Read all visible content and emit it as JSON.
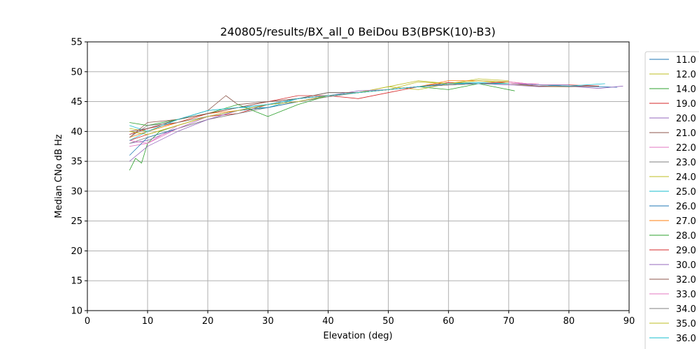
{
  "chart_data": {
    "type": "line",
    "title": "240805/results/BX_all_0 BeiDou B3(BPSK(10)-B3)",
    "xlabel": "Elevation (deg)",
    "ylabel": "Median CNo dB Hz",
    "xlim": [
      0,
      90
    ],
    "ylim": [
      10,
      55
    ],
    "xticks": [
      "0",
      "10",
      "20",
      "30",
      "40",
      "50",
      "60",
      "70",
      "80",
      "90"
    ],
    "yticks": [
      "10",
      "15",
      "20",
      "25",
      "30",
      "35",
      "40",
      "45",
      "50",
      "55"
    ],
    "grid": true,
    "legend_position": "right",
    "series": [
      {
        "name": "11.0",
        "color": "#1f77b4",
        "x": [
          7,
          10,
          15,
          20,
          25,
          30,
          35,
          40,
          45,
          50,
          55,
          60,
          65,
          70,
          75,
          80,
          85,
          88
        ],
        "y": [
          39.5,
          40.5,
          42.0,
          43.0,
          44.0,
          44.5,
          45.5,
          46.0,
          46.5,
          47.0,
          47.5,
          47.8,
          48.0,
          48.0,
          47.8,
          47.6,
          47.5,
          47.4
        ]
      },
      {
        "name": "12.0",
        "color": "#bcbd22",
        "x": [
          7,
          10,
          15,
          20,
          25,
          30,
          35,
          40,
          45,
          50,
          55,
          60,
          65,
          70,
          75,
          80
        ],
        "y": [
          40.5,
          40.0,
          41.5,
          42.5,
          43.5,
          44.5,
          45.0,
          46.0,
          46.5,
          47.5,
          47.0,
          48.0,
          48.5,
          48.0,
          47.5,
          47.5
        ]
      },
      {
        "name": "14.0",
        "color": "#2ca02c",
        "x": [
          7,
          8,
          9,
          10,
          12,
          15,
          20,
          25,
          30,
          35,
          40,
          45,
          50,
          55,
          60,
          65,
          71
        ],
        "y": [
          33.5,
          35.5,
          34.7,
          38.0,
          40.0,
          41.0,
          42.5,
          43.5,
          44.0,
          45.0,
          46.0,
          46.5,
          47.0,
          47.5,
          47.8,
          48.0,
          46.8
        ]
      },
      {
        "name": "19.0",
        "color": "#d62728",
        "x": [
          7,
          10,
          15,
          20,
          25,
          30,
          35,
          40,
          45,
          50,
          55,
          60,
          65,
          70,
          75,
          80,
          85
        ],
        "y": [
          38.5,
          39.5,
          41.0,
          42.5,
          43.0,
          44.5,
          45.5,
          46.0,
          45.5,
          46.5,
          47.5,
          48.2,
          48.0,
          48.3,
          47.8,
          47.8,
          47.6
        ]
      },
      {
        "name": "20.0",
        "color": "#9467bd",
        "x": [
          7,
          10,
          15,
          20,
          25,
          30,
          35,
          40,
          45,
          50,
          55,
          60,
          65,
          70,
          75,
          80,
          85,
          89
        ],
        "y": [
          38.0,
          38.5,
          40.5,
          42.0,
          43.5,
          44.5,
          45.5,
          46.0,
          46.5,
          47.0,
          47.5,
          47.8,
          48.0,
          47.8,
          47.5,
          47.6,
          47.2,
          47.6
        ]
      },
      {
        "name": "21.0",
        "color": "#8c564b",
        "x": [
          7,
          10,
          15,
          20,
          23,
          25,
          30,
          35,
          40,
          45,
          50,
          55,
          60,
          65,
          70,
          75,
          80,
          85
        ],
        "y": [
          39.0,
          41.5,
          42.0,
          43.5,
          46.0,
          44.5,
          45.0,
          45.5,
          46.0,
          46.5,
          47.0,
          47.5,
          47.8,
          48.0,
          48.0,
          47.6,
          47.5,
          47.6
        ]
      },
      {
        "name": "22.0",
        "color": "#e377c2",
        "x": [
          7,
          10,
          15,
          20,
          25,
          30,
          35,
          40,
          45,
          50,
          55,
          60,
          65,
          70,
          75,
          80
        ],
        "y": [
          37.5,
          38.0,
          41.0,
          42.5,
          43.5,
          44.5,
          45.0,
          46.0,
          46.5,
          47.0,
          47.5,
          48.0,
          48.0,
          48.3,
          47.8,
          47.6
        ]
      },
      {
        "name": "23.0",
        "color": "#7f7f7f",
        "x": [
          7,
          10,
          15,
          20,
          25,
          30,
          35,
          40,
          45,
          50,
          55,
          60,
          65,
          70,
          75,
          80
        ],
        "y": [
          38.0,
          39.0,
          40.5,
          42.0,
          43.0,
          44.0,
          45.0,
          45.8,
          46.5,
          47.0,
          47.5,
          47.8,
          48.0,
          48.0,
          47.8,
          47.6
        ]
      },
      {
        "name": "24.0",
        "color": "#bcbd22",
        "x": [
          7,
          10,
          15,
          20,
          25,
          30,
          35,
          40,
          45,
          50,
          55,
          60,
          65,
          70
        ],
        "y": [
          40.0,
          39.5,
          41.0,
          42.5,
          43.5,
          44.5,
          45.0,
          46.0,
          46.5,
          47.5,
          48.5,
          48.0,
          48.8,
          48.5
        ]
      },
      {
        "name": "25.0",
        "color": "#17becf",
        "x": [
          7,
          10,
          15,
          20,
          25,
          30,
          35,
          40,
          45,
          50,
          55,
          60,
          65,
          70,
          75,
          80,
          86
        ],
        "y": [
          41.0,
          40.0,
          42.0,
          43.5,
          44.0,
          44.0,
          45.5,
          46.5,
          46.5,
          47.0,
          47.5,
          48.0,
          48.2,
          48.0,
          47.8,
          47.6,
          48.0
        ]
      },
      {
        "name": "26.0",
        "color": "#1f77b4",
        "x": [
          7,
          10,
          15,
          20,
          25,
          30,
          35,
          40,
          45,
          50,
          55,
          60,
          65,
          70
        ],
        "y": [
          36.0,
          39.0,
          40.5,
          42.5,
          43.5,
          44.0,
          45.0,
          46.0,
          46.5,
          47.0,
          47.5,
          48.0,
          48.0,
          48.0
        ]
      },
      {
        "name": "27.0",
        "color": "#ff7f0e",
        "x": [
          7,
          10,
          15,
          20,
          25,
          30,
          35,
          40,
          45,
          50,
          55,
          60,
          65,
          70
        ],
        "y": [
          39.0,
          40.0,
          41.5,
          43.0,
          43.5,
          44.5,
          45.5,
          46.0,
          46.5,
          47.0,
          47.5,
          48.5,
          48.5,
          48.3
        ]
      },
      {
        "name": "28.0",
        "color": "#2ca02c",
        "x": [
          7,
          10,
          15,
          20,
          25,
          30,
          35,
          40,
          45,
          50,
          55,
          60,
          65,
          70
        ],
        "y": [
          41.5,
          41.0,
          42.0,
          43.0,
          44.5,
          42.5,
          44.5,
          46.0,
          46.5,
          47.0,
          47.5,
          47.0,
          48.0,
          48.0
        ]
      },
      {
        "name": "29.0",
        "color": "#d62728",
        "x": [
          7,
          10,
          15,
          20,
          25,
          30,
          35,
          40,
          45,
          50,
          55,
          60,
          65,
          70
        ],
        "y": [
          39.5,
          40.5,
          41.5,
          43.0,
          44.0,
          45.0,
          46.0,
          46.0,
          46.5,
          47.0,
          47.5,
          48.0,
          48.0,
          48.3
        ]
      },
      {
        "name": "30.0",
        "color": "#9467bd",
        "x": [
          7,
          10,
          15,
          20,
          25,
          30,
          35,
          40,
          45,
          50,
          55,
          60,
          65,
          70,
          75,
          80
        ],
        "y": [
          35.0,
          37.5,
          40.0,
          42.0,
          43.5,
          44.5,
          45.5,
          46.0,
          46.8,
          47.0,
          47.5,
          48.0,
          48.0,
          48.0,
          47.8,
          47.8
        ]
      },
      {
        "name": "32.0",
        "color": "#8c564b",
        "x": [
          7,
          10,
          15,
          20,
          25,
          30,
          35,
          40,
          45,
          50,
          55,
          60,
          65,
          70
        ],
        "y": [
          40.0,
          40.5,
          42.0,
          43.0,
          44.0,
          45.0,
          45.5,
          46.5,
          46.5,
          47.0,
          47.5,
          48.0,
          48.0,
          48.0
        ]
      },
      {
        "name": "33.0",
        "color": "#e377c2",
        "x": [
          7,
          10,
          15,
          20,
          25,
          30,
          35,
          40,
          45,
          50,
          55,
          60,
          65,
          70,
          75
        ],
        "y": [
          38.5,
          38.0,
          40.5,
          42.5,
          43.5,
          44.5,
          45.0,
          46.0,
          46.5,
          47.0,
          47.5,
          48.0,
          48.0,
          48.0,
          48.0
        ]
      },
      {
        "name": "34.0",
        "color": "#7f7f7f",
        "x": [
          7,
          10,
          15,
          20,
          25,
          30,
          35,
          40,
          45,
          50,
          55,
          60,
          65,
          70
        ],
        "y": [
          39.0,
          41.0,
          41.5,
          42.5,
          43.5,
          44.5,
          45.5,
          46.0,
          46.5,
          47.0,
          47.5,
          48.0,
          48.0,
          48.0
        ]
      },
      {
        "name": "35.0",
        "color": "#bcbd22",
        "x": [
          7,
          10,
          15,
          20,
          25,
          30,
          35,
          40,
          45,
          50,
          55,
          60,
          65,
          70
        ],
        "y": [
          40.0,
          39.5,
          41.0,
          42.5,
          43.5,
          44.5,
          45.0,
          46.0,
          46.5,
          47.0,
          48.3,
          48.0,
          48.5,
          48.3
        ]
      },
      {
        "name": "36.0",
        "color": "#17becf",
        "x": [
          7,
          10,
          15,
          20,
          25,
          30,
          35,
          40,
          45,
          50,
          55,
          60,
          65,
          70
        ],
        "y": [
          38.5,
          40.0,
          42.0,
          43.5,
          44.0,
          44.5,
          45.5,
          46.0,
          46.5,
          47.0,
          47.5,
          48.0,
          48.0,
          48.0
        ]
      }
    ]
  }
}
